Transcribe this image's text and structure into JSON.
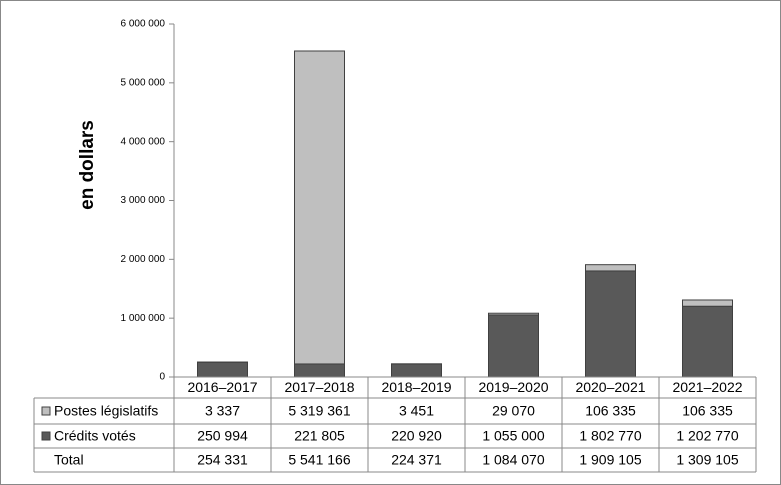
{
  "chart_data": {
    "type": "stacked_bar",
    "y_label": "en dollars",
    "categories": [
      "2016–2017",
      "2017–2018",
      "2018–2019",
      "2019–2020",
      "2020–2021",
      "2021–2022"
    ],
    "series": [
      {
        "name": "Postes législatifs",
        "color": "#bfbfbf",
        "values": [
          3337,
          5319361,
          3451,
          29070,
          106335,
          106335
        ],
        "value_labels": [
          "3 337",
          "5 319 361",
          "3 451",
          "29 070",
          "106 335",
          "106 335"
        ]
      },
      {
        "name": "Crédits votés",
        "color": "#595959",
        "values": [
          250994,
          221805,
          220920,
          1055000,
          1802770,
          1202770
        ],
        "value_labels": [
          "250 994",
          "221 805",
          "220 920",
          "1 055 000",
          "1 802 770",
          "1 202 770"
        ]
      }
    ],
    "total_name": "Total",
    "totals": [
      254331,
      5541166,
      224371,
      1084070,
      1909105,
      1309105
    ],
    "total_labels": [
      "254 331",
      "5 541 166",
      "224 371",
      "1 084 070",
      "1 909 105",
      "1 309 105"
    ],
    "ylim": [
      0,
      6000000
    ],
    "yticks": [
      0,
      {
        "value": 1000000,
        "label": "1 000 000"
      },
      {
        "value": 2000000,
        "label": "2 000 000"
      },
      {
        "value": 3000000,
        "label": "3 000 000"
      },
      {
        "value": 4000000,
        "label": "4 000 000"
      },
      {
        "value": 5000000,
        "label": "5 000 000"
      },
      {
        "value": 6000000,
        "label": "6 000 000"
      }
    ],
    "grid": false
  }
}
